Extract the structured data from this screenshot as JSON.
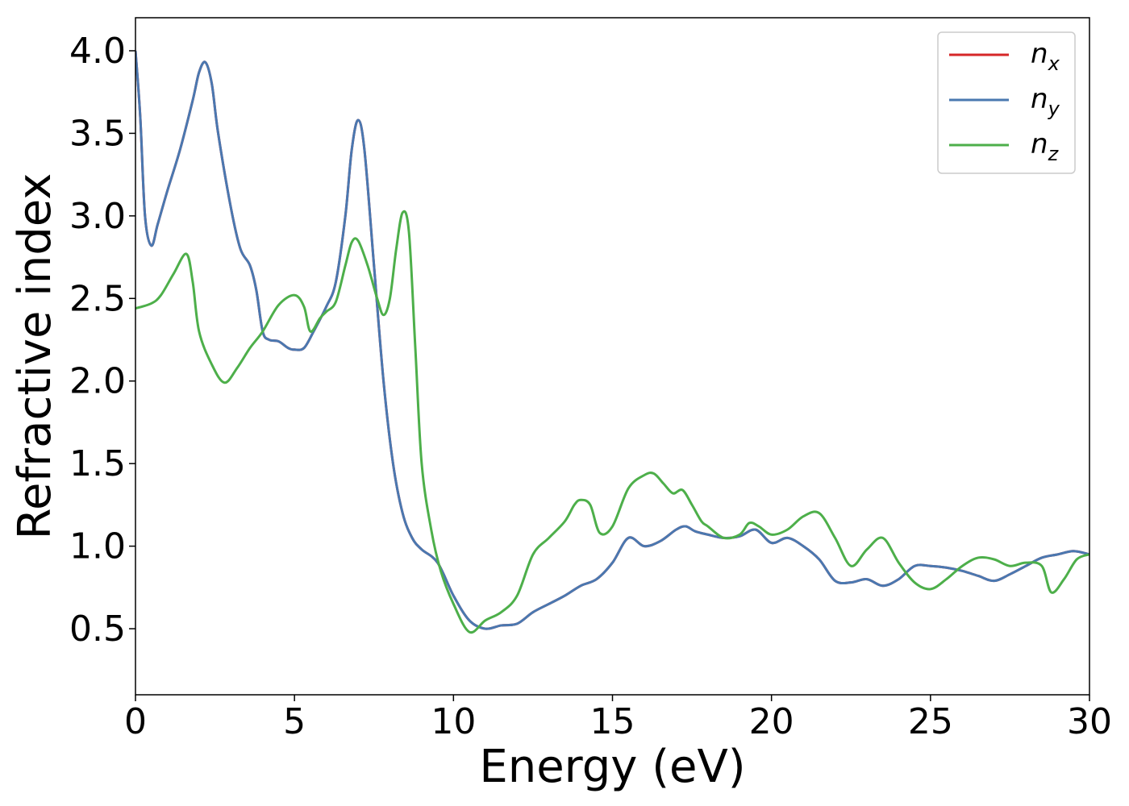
{
  "chart_data": {
    "type": "line",
    "xlabel": "Energy (eV)",
    "ylabel": "Refractive index",
    "xlim": [
      0,
      30
    ],
    "ylim": [
      0.1,
      4.2
    ],
    "xticks": [
      "0",
      "5",
      "10",
      "15",
      "20",
      "25",
      "30"
    ],
    "yticks": [
      "0.5",
      "1.0",
      "1.5",
      "2.0",
      "2.5",
      "3.0",
      "3.5",
      "4.0"
    ],
    "grid": false,
    "legend_position": "top-right",
    "series": [
      {
        "name": "n_x",
        "label_base": "n",
        "label_sub": "x",
        "color": "#d62728",
        "x": [
          0,
          0.15,
          0.3,
          0.5,
          0.7,
          1.0,
          1.4,
          1.8,
          2.0,
          2.2,
          2.4,
          2.6,
          3.0,
          3.3,
          3.6,
          3.8,
          4.0,
          4.2,
          4.5,
          4.8,
          5.0,
          5.3,
          5.6,
          6.0,
          6.3,
          6.6,
          6.8,
          7.0,
          7.2,
          7.5,
          7.8,
          8.1,
          8.4,
          8.7,
          9.0,
          9.5,
          10.0,
          10.5,
          11.0,
          11.5,
          12.0,
          12.5,
          13.0,
          13.5,
          14.0,
          14.5,
          15.0,
          15.5,
          16.0,
          16.5,
          17.0,
          17.3,
          17.6,
          18.0,
          18.5,
          19.0,
          19.5,
          20.0,
          20.5,
          21.0,
          21.5,
          22.0,
          22.5,
          23.0,
          23.5,
          24.0,
          24.5,
          25.0,
          25.5,
          26.0,
          26.5,
          27.0,
          27.5,
          28.0,
          28.5,
          29.0,
          29.5,
          30.0
        ],
        "values": [
          4.0,
          3.6,
          3.0,
          2.82,
          2.95,
          3.15,
          3.4,
          3.7,
          3.87,
          3.93,
          3.8,
          3.5,
          3.05,
          2.8,
          2.7,
          2.55,
          2.3,
          2.25,
          2.24,
          2.2,
          2.19,
          2.2,
          2.3,
          2.45,
          2.6,
          3.0,
          3.4,
          3.58,
          3.4,
          2.7,
          2.0,
          1.5,
          1.2,
          1.05,
          0.98,
          0.9,
          0.7,
          0.55,
          0.5,
          0.52,
          0.53,
          0.6,
          0.65,
          0.7,
          0.76,
          0.8,
          0.9,
          1.05,
          1.0,
          1.03,
          1.1,
          1.12,
          1.09,
          1.07,
          1.05,
          1.06,
          1.1,
          1.02,
          1.05,
          1.0,
          0.92,
          0.79,
          0.78,
          0.8,
          0.76,
          0.8,
          0.88,
          0.88,
          0.87,
          0.85,
          0.82,
          0.79,
          0.83,
          0.88,
          0.93,
          0.95,
          0.97,
          0.95
        ]
      },
      {
        "name": "n_y",
        "label_base": "n",
        "label_sub": "y",
        "color": "#4a78b0",
        "x": [
          0,
          0.15,
          0.3,
          0.5,
          0.7,
          1.0,
          1.4,
          1.8,
          2.0,
          2.2,
          2.4,
          2.6,
          3.0,
          3.3,
          3.6,
          3.8,
          4.0,
          4.2,
          4.5,
          4.8,
          5.0,
          5.3,
          5.6,
          6.0,
          6.3,
          6.6,
          6.8,
          7.0,
          7.2,
          7.5,
          7.8,
          8.1,
          8.4,
          8.7,
          9.0,
          9.5,
          10.0,
          10.5,
          11.0,
          11.5,
          12.0,
          12.5,
          13.0,
          13.5,
          14.0,
          14.5,
          15.0,
          15.5,
          16.0,
          16.5,
          17.0,
          17.3,
          17.6,
          18.0,
          18.5,
          19.0,
          19.5,
          20.0,
          20.5,
          21.0,
          21.5,
          22.0,
          22.5,
          23.0,
          23.5,
          24.0,
          24.5,
          25.0,
          25.5,
          26.0,
          26.5,
          27.0,
          27.5,
          28.0,
          28.5,
          29.0,
          29.5,
          30.0
        ],
        "values": [
          4.0,
          3.6,
          3.0,
          2.82,
          2.95,
          3.15,
          3.4,
          3.7,
          3.87,
          3.93,
          3.8,
          3.5,
          3.05,
          2.8,
          2.7,
          2.55,
          2.3,
          2.25,
          2.24,
          2.2,
          2.19,
          2.2,
          2.3,
          2.45,
          2.6,
          3.0,
          3.4,
          3.58,
          3.4,
          2.7,
          2.0,
          1.5,
          1.2,
          1.05,
          0.98,
          0.9,
          0.7,
          0.55,
          0.5,
          0.52,
          0.53,
          0.6,
          0.65,
          0.7,
          0.76,
          0.8,
          0.9,
          1.05,
          1.0,
          1.03,
          1.1,
          1.12,
          1.09,
          1.07,
          1.05,
          1.06,
          1.1,
          1.02,
          1.05,
          1.0,
          0.92,
          0.79,
          0.78,
          0.8,
          0.76,
          0.8,
          0.88,
          0.88,
          0.87,
          0.85,
          0.82,
          0.79,
          0.83,
          0.88,
          0.93,
          0.95,
          0.97,
          0.95
        ]
      },
      {
        "name": "n_z",
        "label_base": "n",
        "label_sub": "z",
        "color": "#4daf4a",
        "x": [
          0,
          0.5,
          0.8,
          1.2,
          1.6,
          1.8,
          2.0,
          2.4,
          2.8,
          3.2,
          3.6,
          4.0,
          4.5,
          5.0,
          5.3,
          5.5,
          5.8,
          6.0,
          6.3,
          6.6,
          6.8,
          7.0,
          7.3,
          7.6,
          7.8,
          8.0,
          8.2,
          8.4,
          8.6,
          8.8,
          9.0,
          9.3,
          9.6,
          10.0,
          10.5,
          11.0,
          11.5,
          12.0,
          12.5,
          13.0,
          13.5,
          13.8,
          14.0,
          14.3,
          14.6,
          15.0,
          15.5,
          16.0,
          16.3,
          16.6,
          16.9,
          17.2,
          17.5,
          17.8,
          18.0,
          18.5,
          19.0,
          19.3,
          19.6,
          20.0,
          20.5,
          21.0,
          21.5,
          22.0,
          22.5,
          23.0,
          23.5,
          24.0,
          24.5,
          25.0,
          25.5,
          26.0,
          26.5,
          27.0,
          27.5,
          28.0,
          28.5,
          28.8,
          29.2,
          29.6,
          30.0
        ],
        "values": [
          2.44,
          2.47,
          2.52,
          2.65,
          2.77,
          2.6,
          2.3,
          2.1,
          1.99,
          2.08,
          2.2,
          2.3,
          2.46,
          2.52,
          2.45,
          2.3,
          2.38,
          2.42,
          2.48,
          2.7,
          2.84,
          2.85,
          2.7,
          2.5,
          2.4,
          2.5,
          2.8,
          3.02,
          2.9,
          2.2,
          1.5,
          1.1,
          0.85,
          0.65,
          0.48,
          0.55,
          0.6,
          0.7,
          0.95,
          1.05,
          1.15,
          1.25,
          1.28,
          1.25,
          1.08,
          1.12,
          1.35,
          1.43,
          1.44,
          1.38,
          1.32,
          1.34,
          1.25,
          1.15,
          1.12,
          1.05,
          1.07,
          1.14,
          1.12,
          1.07,
          1.1,
          1.18,
          1.2,
          1.05,
          0.88,
          0.98,
          1.05,
          0.9,
          0.78,
          0.74,
          0.8,
          0.88,
          0.93,
          0.92,
          0.88,
          0.9,
          0.88,
          0.72,
          0.8,
          0.92,
          0.95
        ]
      }
    ]
  }
}
